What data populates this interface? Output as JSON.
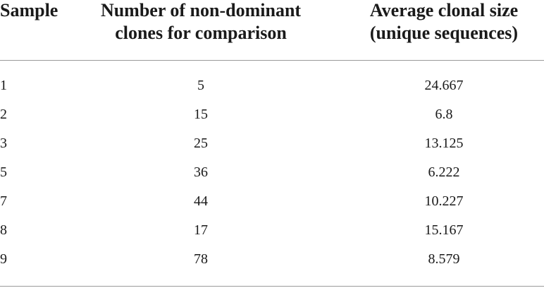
{
  "table": {
    "header": [
      [
        "Sample"
      ],
      [
        "Number of non-dominant",
        "clones for comparison"
      ],
      [
        "Average clonal size",
        "(unique sequences)"
      ]
    ],
    "rows": [
      [
        "1",
        "5",
        "24.667"
      ],
      [
        "2",
        "15",
        "6.8"
      ],
      [
        "3",
        "25",
        "13.125"
      ],
      [
        "5",
        "36",
        "6.222"
      ],
      [
        "7",
        "44",
        "10.227"
      ],
      [
        "8",
        "17",
        "15.167"
      ],
      [
        "9",
        "78",
        "8.579"
      ]
    ]
  }
}
